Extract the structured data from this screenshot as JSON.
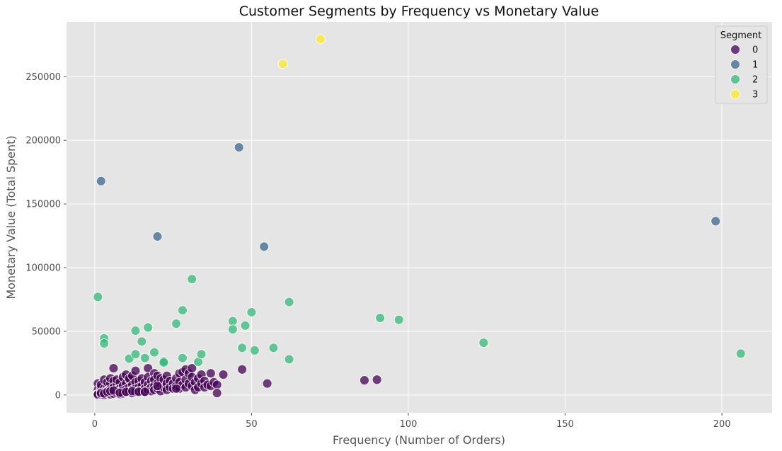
{
  "chart_data": {
    "type": "scatter",
    "title": "Customer Segments by Frequency vs Monetary Value",
    "xlabel": "Frequency (Number of Orders)",
    "ylabel": "Monetary Value (Total Spent)",
    "xlim": [
      -9,
      216
    ],
    "ylim": [
      -14000,
      293000
    ],
    "xticks": [
      0,
      50,
      100,
      150,
      200
    ],
    "xtick_labels": [
      "0",
      "50",
      "100",
      "150",
      "200"
    ],
    "yticks": [
      0,
      50000,
      100000,
      150000,
      200000,
      250000
    ],
    "ytick_labels": [
      "0",
      "50000",
      "100000",
      "150000",
      "200000",
      "250000"
    ],
    "grid": true,
    "background": "#e5e5e5",
    "legend": {
      "title": "Segment",
      "placement": "top-right",
      "entries": [
        "0",
        "1",
        "2",
        "3"
      ]
    },
    "series": [
      {
        "name": "0",
        "color": "#440154",
        "points": [
          [
            1,
            9000
          ],
          [
            1,
            4000
          ],
          [
            1,
            1000
          ],
          [
            1,
            300
          ],
          [
            2,
            6000
          ],
          [
            2,
            2000
          ],
          [
            2,
            500
          ],
          [
            2,
            8000
          ],
          [
            3,
            12000
          ],
          [
            3,
            5000
          ],
          [
            3,
            2500
          ],
          [
            3,
            800
          ],
          [
            3,
            0
          ],
          [
            4,
            7000
          ],
          [
            4,
            3000
          ],
          [
            4,
            1500
          ],
          [
            4,
            10000
          ],
          [
            5,
            9000
          ],
          [
            5,
            4500
          ],
          [
            5,
            2000
          ],
          [
            5,
            500
          ],
          [
            5,
            13000
          ],
          [
            6,
            21000
          ],
          [
            6,
            11000
          ],
          [
            6,
            6000
          ],
          [
            6,
            3000
          ],
          [
            6,
            1000
          ],
          [
            7,
            8000
          ],
          [
            7,
            4000
          ],
          [
            7,
            1500
          ],
          [
            7,
            12000
          ],
          [
            8,
            10000
          ],
          [
            8,
            5000
          ],
          [
            8,
            2500
          ],
          [
            8,
            700
          ],
          [
            9,
            14000
          ],
          [
            9,
            7000
          ],
          [
            9,
            3500
          ],
          [
            9,
            1200
          ],
          [
            10,
            16000
          ],
          [
            10,
            9000
          ],
          [
            10,
            4500
          ],
          [
            10,
            2000
          ],
          [
            11,
            12000
          ],
          [
            11,
            6000
          ],
          [
            11,
            3000
          ],
          [
            11,
            13000
          ],
          [
            12,
            15000
          ],
          [
            12,
            8000
          ],
          [
            12,
            4000
          ],
          [
            12,
            1500
          ],
          [
            13,
            19000
          ],
          [
            13,
            10000
          ],
          [
            13,
            5000
          ],
          [
            13,
            2500
          ],
          [
            14,
            11000
          ],
          [
            14,
            6000
          ],
          [
            14,
            3000
          ],
          [
            15,
            13000
          ],
          [
            15,
            7000
          ],
          [
            15,
            3500
          ],
          [
            16,
            10000
          ],
          [
            16,
            5000
          ],
          [
            16,
            2000
          ],
          [
            17,
            21000
          ],
          [
            17,
            14000
          ],
          [
            17,
            8000
          ],
          [
            17,
            4000
          ],
          [
            18,
            11000
          ],
          [
            18,
            6000
          ],
          [
            18,
            3000
          ],
          [
            19,
            17000
          ],
          [
            19,
            12000
          ],
          [
            19,
            7000
          ],
          [
            19,
            4000
          ],
          [
            20,
            15000
          ],
          [
            20,
            9000
          ],
          [
            20,
            5000
          ],
          [
            21,
            13000
          ],
          [
            21,
            7000
          ],
          [
            21,
            3000
          ],
          [
            22,
            12000
          ],
          [
            22,
            6000
          ],
          [
            23,
            15000
          ],
          [
            23,
            9000
          ],
          [
            23,
            4000
          ],
          [
            24,
            11000
          ],
          [
            24,
            6000
          ],
          [
            25,
            9000
          ],
          [
            25,
            5000
          ],
          [
            26,
            13000
          ],
          [
            26,
            7000
          ],
          [
            27,
            17000
          ],
          [
            27,
            10000
          ],
          [
            27,
            5000
          ],
          [
            28,
            18000
          ],
          [
            28,
            8000
          ],
          [
            29,
            20000
          ],
          [
            29,
            12000
          ],
          [
            29,
            6000
          ],
          [
            30,
            17000
          ],
          [
            30,
            9000
          ],
          [
            31,
            21000
          ],
          [
            31,
            14000
          ],
          [
            31,
            7000
          ],
          [
            32,
            10000
          ],
          [
            32,
            4000
          ],
          [
            33,
            13000
          ],
          [
            33,
            6000
          ],
          [
            34,
            16000
          ],
          [
            34,
            9000
          ],
          [
            35,
            11000
          ],
          [
            35,
            6000
          ],
          [
            36,
            8000
          ],
          [
            37,
            17000
          ],
          [
            37,
            7000
          ],
          [
            38,
            10000
          ],
          [
            39,
            8000
          ],
          [
            39,
            1500
          ],
          [
            41,
            16000
          ],
          [
            47,
            20000
          ],
          [
            55,
            9000
          ],
          [
            86,
            11500
          ],
          [
            90,
            12000
          ],
          [
            2,
            1500
          ],
          [
            3,
            1200
          ],
          [
            4,
            2500
          ],
          [
            5,
            3000
          ],
          [
            6,
            3500
          ],
          [
            8,
            1800
          ],
          [
            10,
            2500
          ],
          [
            12,
            3000
          ],
          [
            14,
            2500
          ],
          [
            16,
            2500
          ],
          [
            20,
            7000
          ],
          [
            26,
            5000
          ]
        ]
      },
      {
        "name": "1",
        "color": "#3b668c",
        "points": [
          [
            2,
            168000
          ],
          [
            20,
            124500
          ],
          [
            46,
            194500
          ],
          [
            54,
            116500
          ],
          [
            198,
            136500
          ]
        ]
      },
      {
        "name": "2",
        "color": "#35b779",
        "points": [
          [
            1,
            77000
          ],
          [
            3,
            44500
          ],
          [
            3,
            40500
          ],
          [
            11,
            28500
          ],
          [
            13,
            50500
          ],
          [
            13,
            32000
          ],
          [
            15,
            42000
          ],
          [
            16,
            29000
          ],
          [
            17,
            53000
          ],
          [
            19,
            33500
          ],
          [
            22,
            26500
          ],
          [
            22,
            25500
          ],
          [
            26,
            56000
          ],
          [
            28,
            66500
          ],
          [
            28,
            29000
          ],
          [
            31,
            91000
          ],
          [
            33,
            26000
          ],
          [
            34,
            32000
          ],
          [
            44,
            58000
          ],
          [
            44,
            51500
          ],
          [
            47,
            37000
          ],
          [
            48,
            54500
          ],
          [
            50,
            65000
          ],
          [
            51,
            35000
          ],
          [
            57,
            37000
          ],
          [
            62,
            73000
          ],
          [
            62,
            28000
          ],
          [
            91,
            60500
          ],
          [
            97,
            59000
          ],
          [
            124,
            41000
          ],
          [
            206,
            32500
          ]
        ]
      },
      {
        "name": "3",
        "color": "#fde725",
        "points": [
          [
            60,
            260000
          ],
          [
            72,
            279500
          ]
        ]
      }
    ]
  }
}
